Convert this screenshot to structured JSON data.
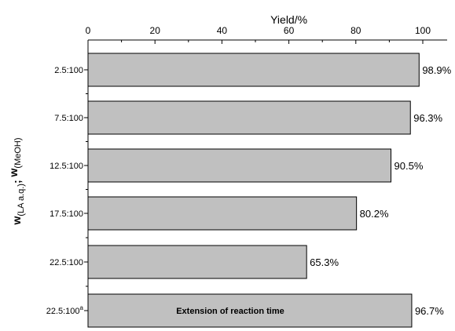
{
  "chart_data": {
    "type": "bar",
    "orientation": "horizontal",
    "title": "",
    "xlabel": "Yield/%",
    "xlim": [
      0,
      100
    ],
    "x_ticks": [
      0,
      20,
      40,
      60,
      80,
      100
    ],
    "x_axis_position": "top",
    "ylabel": {
      "w1": "w",
      "sub1": "(LA a.q.)",
      "sep": "; ",
      "w2": "w",
      "sub2": "(MeOH)"
    },
    "categories": [
      "2.5:100",
      "7.5:100",
      "12.5:100",
      "17.5:100",
      "22.5:100",
      "22.5:100"
    ],
    "category_superscripts": [
      "",
      "",
      "",
      "",
      "",
      "a"
    ],
    "values": [
      98.9,
      96.3,
      90.5,
      80.2,
      65.3,
      96.7
    ],
    "value_labels": [
      "98.9%",
      "96.3%",
      "90.5%",
      "80.2%",
      "65.3%",
      "96.7%"
    ],
    "bar_color": "#c0c0c0",
    "bar_edge_color": "#000000",
    "highlight_color": "#1a1adb",
    "highlight_index": 5,
    "annotations": [
      {
        "bar_index": 5,
        "text": "Extension of reaction time",
        "color": "#1a1adb"
      }
    ],
    "grid": false,
    "legend": "none"
  }
}
